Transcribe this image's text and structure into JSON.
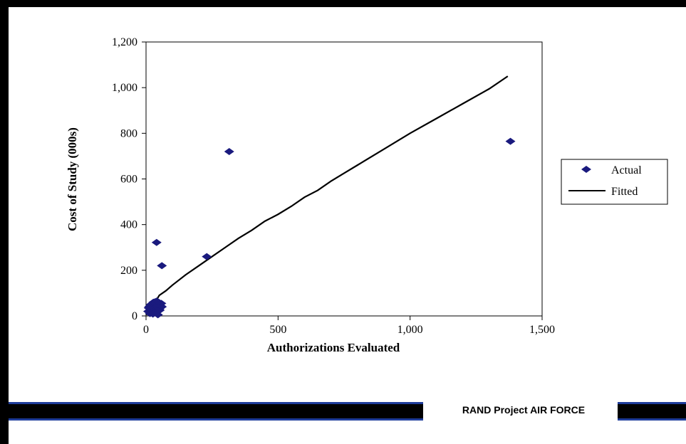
{
  "footer": {
    "label": "RAND Project AIR FORCE"
  },
  "colors": {
    "marker": "#1a1a7e",
    "fitted_line": "#000000",
    "footer_accent": "#1e3c9a"
  },
  "chart_data": {
    "type": "scatter",
    "xlabel": "Authorizations Evaluated",
    "ylabel": "Cost of Study (000s)",
    "xlim": [
      0,
      1500
    ],
    "ylim": [
      0,
      1200
    ],
    "x_ticks": [
      0,
      500,
      1000,
      1500
    ],
    "x_tick_labels": [
      "0",
      "500",
      "1,000",
      "1,500"
    ],
    "y_ticks": [
      0,
      200,
      400,
      600,
      800,
      1000,
      1200
    ],
    "y_tick_labels": [
      "0",
      "200",
      "400",
      "600",
      "800",
      "1,000",
      "1,200"
    ],
    "legend_position": "right",
    "series": [
      {
        "name": "Actual",
        "kind": "marker",
        "x": [
          8,
          12,
          15,
          18,
          20,
          22,
          25,
          28,
          30,
          32,
          35,
          38,
          40,
          42,
          45,
          50,
          55,
          10,
          26,
          34,
          48,
          52,
          58,
          60,
          40,
          60,
          230,
          315,
          1380
        ],
        "y": [
          20,
          40,
          10,
          50,
          30,
          25,
          45,
          60,
          15,
          35,
          55,
          20,
          65,
          40,
          5,
          30,
          45,
          35,
          8,
          62,
          60,
          25,
          55,
          40,
          322,
          220,
          260,
          720,
          765
        ]
      },
      {
        "name": "Fitted",
        "kind": "line",
        "x": [
          0,
          25,
          50,
          75,
          100,
          150,
          200,
          250,
          300,
          350,
          400,
          450,
          500,
          550,
          600,
          650,
          700,
          750,
          800,
          900,
          1000,
          1100,
          1200,
          1300,
          1370
        ],
        "y": [
          5,
          40,
          90,
          110,
          135,
          180,
          220,
          260,
          300,
          340,
          375,
          415,
          445,
          480,
          520,
          550,
          590,
          625,
          660,
          730,
          800,
          865,
          930,
          995,
          1050
        ]
      }
    ]
  }
}
